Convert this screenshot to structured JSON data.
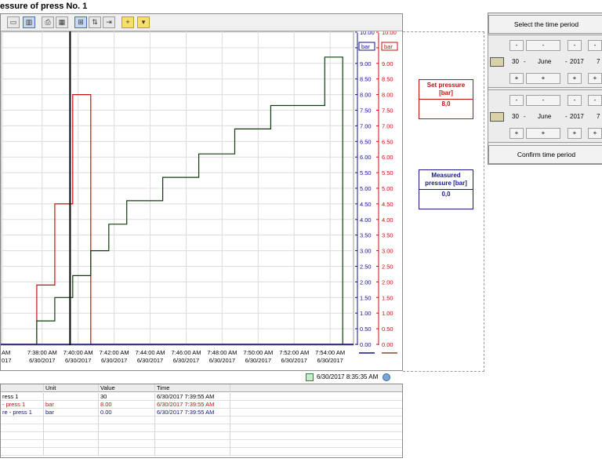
{
  "title": "essure of press No. 1",
  "chart_data": {
    "type": "line",
    "x_ticks": [
      {
        "t": "7:38:00 AM",
        "d": "6/30/2017",
        "full": false
      },
      {
        "t": "7:40:00 AM",
        "d": "6/30/2017",
        "full": true
      },
      {
        "t": "7:42:00 AM",
        "d": "6/30/2017",
        "full": true
      },
      {
        "t": "7:44:00 AM",
        "d": "6/30/2017",
        "full": true
      },
      {
        "t": "7:46:00 AM",
        "d": "6/30/2017",
        "full": true
      },
      {
        "t": "7:48:00 AM",
        "d": "6/30/2017",
        "full": true
      },
      {
        "t": "7:50:00 AM",
        "d": "6/30/2017",
        "full": true
      },
      {
        "t": "7:52:00 AM",
        "d": "6/30/2017",
        "full": true
      },
      {
        "t": "7:54:00 AM",
        "d": "6/30/2017",
        "full": true
      }
    ],
    "left_partial_label": {
      "t": "AM",
      "d": "017"
    },
    "y_ticks": [
      "10.00",
      "9.50",
      "9.00",
      "8.50",
      "8.00",
      "7.50",
      "7.00",
      "6.50",
      "6.00",
      "5.50",
      "5.00",
      "4.50",
      "4.00",
      "3.50",
      "3.00",
      "2.50",
      "2.00",
      "1.50",
      "1.00",
      "0.50",
      "0.00"
    ],
    "y_unit_left": "bar",
    "y_unit_right": "bar",
    "ylim": [
      0,
      10
    ],
    "xlim_minutes": [
      35.7,
      55.3
    ],
    "colors": {
      "set": "#c01010",
      "measured": "#10108a",
      "counter": "#0f3d0f",
      "cursor": "#000000"
    },
    "cursor_minute": 39.55,
    "series": [
      {
        "key": "set",
        "points": [
          [
            35.7,
            0
          ],
          [
            37.7,
            0
          ],
          [
            37.7,
            1.9
          ],
          [
            38.7,
            1.9
          ],
          [
            38.7,
            4.5
          ],
          [
            39.7,
            4.5
          ],
          [
            39.7,
            8.0
          ],
          [
            40.7,
            8.0
          ],
          [
            40.7,
            0
          ],
          [
            55.3,
            0
          ]
        ]
      },
      {
        "key": "measured",
        "points": [
          [
            35.7,
            0
          ],
          [
            55.3,
            0
          ]
        ]
      },
      {
        "key": "counter",
        "points": [
          [
            37.7,
            0
          ],
          [
            37.7,
            0.75
          ],
          [
            38.7,
            0.75
          ],
          [
            38.7,
            1.5
          ],
          [
            39.7,
            1.5
          ],
          [
            39.7,
            2.2
          ],
          [
            40.7,
            2.2
          ],
          [
            40.7,
            3.0
          ],
          [
            41.7,
            3.0
          ],
          [
            41.7,
            3.85
          ],
          [
            42.7,
            3.85
          ],
          [
            42.7,
            4.6
          ],
          [
            44.7,
            4.6
          ],
          [
            44.7,
            5.35
          ],
          [
            46.7,
            5.35
          ],
          [
            46.7,
            6.1
          ],
          [
            48.7,
            6.1
          ],
          [
            48.7,
            6.9
          ],
          [
            50.7,
            6.9
          ],
          [
            50.7,
            7.65
          ],
          [
            53.7,
            7.65
          ],
          [
            53.7,
            9.2
          ],
          [
            54.7,
            9.2
          ],
          [
            54.7,
            0
          ]
        ]
      }
    ]
  },
  "set_pressure": {
    "label": "Set pressure [bar]",
    "value": "8,0"
  },
  "measured_pressure": {
    "label": "Measured pressure [bar]",
    "value": "0,0"
  },
  "status": {
    "datetime": "6/30/2017   8:35:35 AM"
  },
  "table": {
    "headers": [
      "",
      "Unit",
      "Value",
      "Time"
    ],
    "rows": [
      {
        "name": "ress 1",
        "unit": "",
        "value": "30",
        "time": "6/30/2017 7:39:55 AM",
        "color": "#000000"
      },
      {
        "name": "- press 1",
        "unit": "bar",
        "value": "8.00",
        "time": "6/30/2017 7:39:55 AM",
        "color": "#c01010"
      },
      {
        "name": "re - press 1",
        "unit": "bar",
        "value": "0.00",
        "time": "6/30/2017 7:39:55 AM",
        "color": "#10108a"
      },
      {
        "name": "",
        "unit": "",
        "value": "",
        "time": "",
        "color": "#000000"
      },
      {
        "name": "",
        "unit": "",
        "value": "",
        "time": "",
        "color": "#000000"
      },
      {
        "name": "",
        "unit": "",
        "value": "",
        "time": "",
        "color": "#000000"
      },
      {
        "name": "",
        "unit": "",
        "value": "",
        "time": "",
        "color": "#000000"
      },
      {
        "name": "",
        "unit": "",
        "value": "",
        "time": "",
        "color": "#000000"
      }
    ]
  },
  "time_period": {
    "select_label": "Select the time period",
    "confirm_label": "Confirm time period",
    "from": {
      "day": "30",
      "month": "June",
      "year": "2017",
      "hour": "7"
    },
    "to": {
      "day": "30",
      "month": "June",
      "year": "2017",
      "hour": "7"
    },
    "minus": "-",
    "plus": "+",
    "sep": "-"
  }
}
